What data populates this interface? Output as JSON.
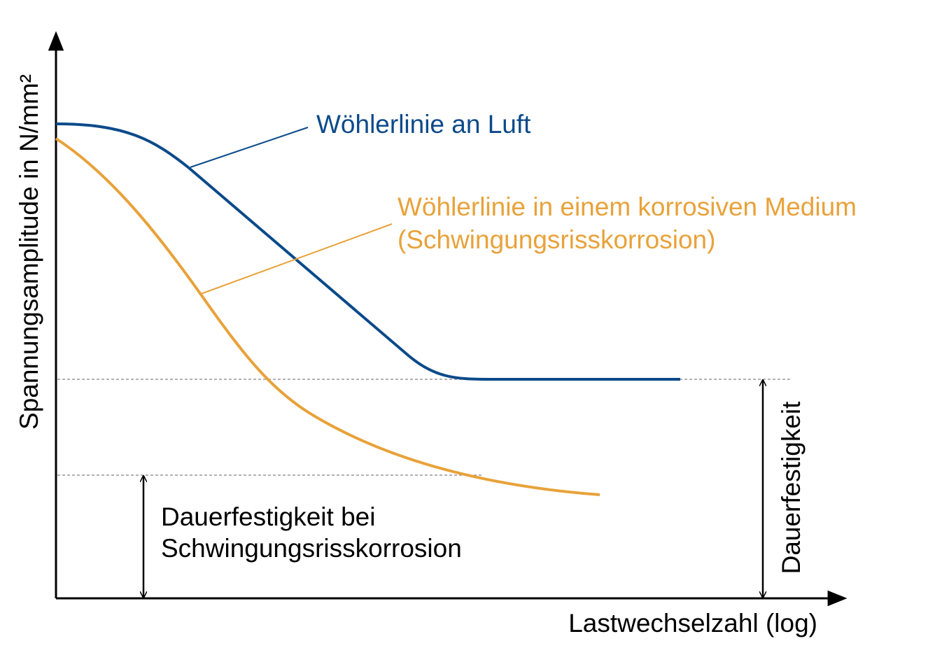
{
  "axes": {
    "x_label": "Lastwechselzahl (log)",
    "y_label": "Spannungsamplitude in N/mm²"
  },
  "curves": {
    "air": {
      "label": "Wöhlerlinie an Luft"
    },
    "corrosive": {
      "label_lines": [
        "Wöhlerlinie in einem korrosiven Medium",
        "(Schwingungsrisskorrosion)"
      ]
    }
  },
  "annotations": {
    "fatigue_limit": "Dauerfestigkeit",
    "corrosion_fatigue_limit": [
      "Dauerfestigkeit bei",
      "Schwingungsrisskorrosion"
    ]
  }
}
